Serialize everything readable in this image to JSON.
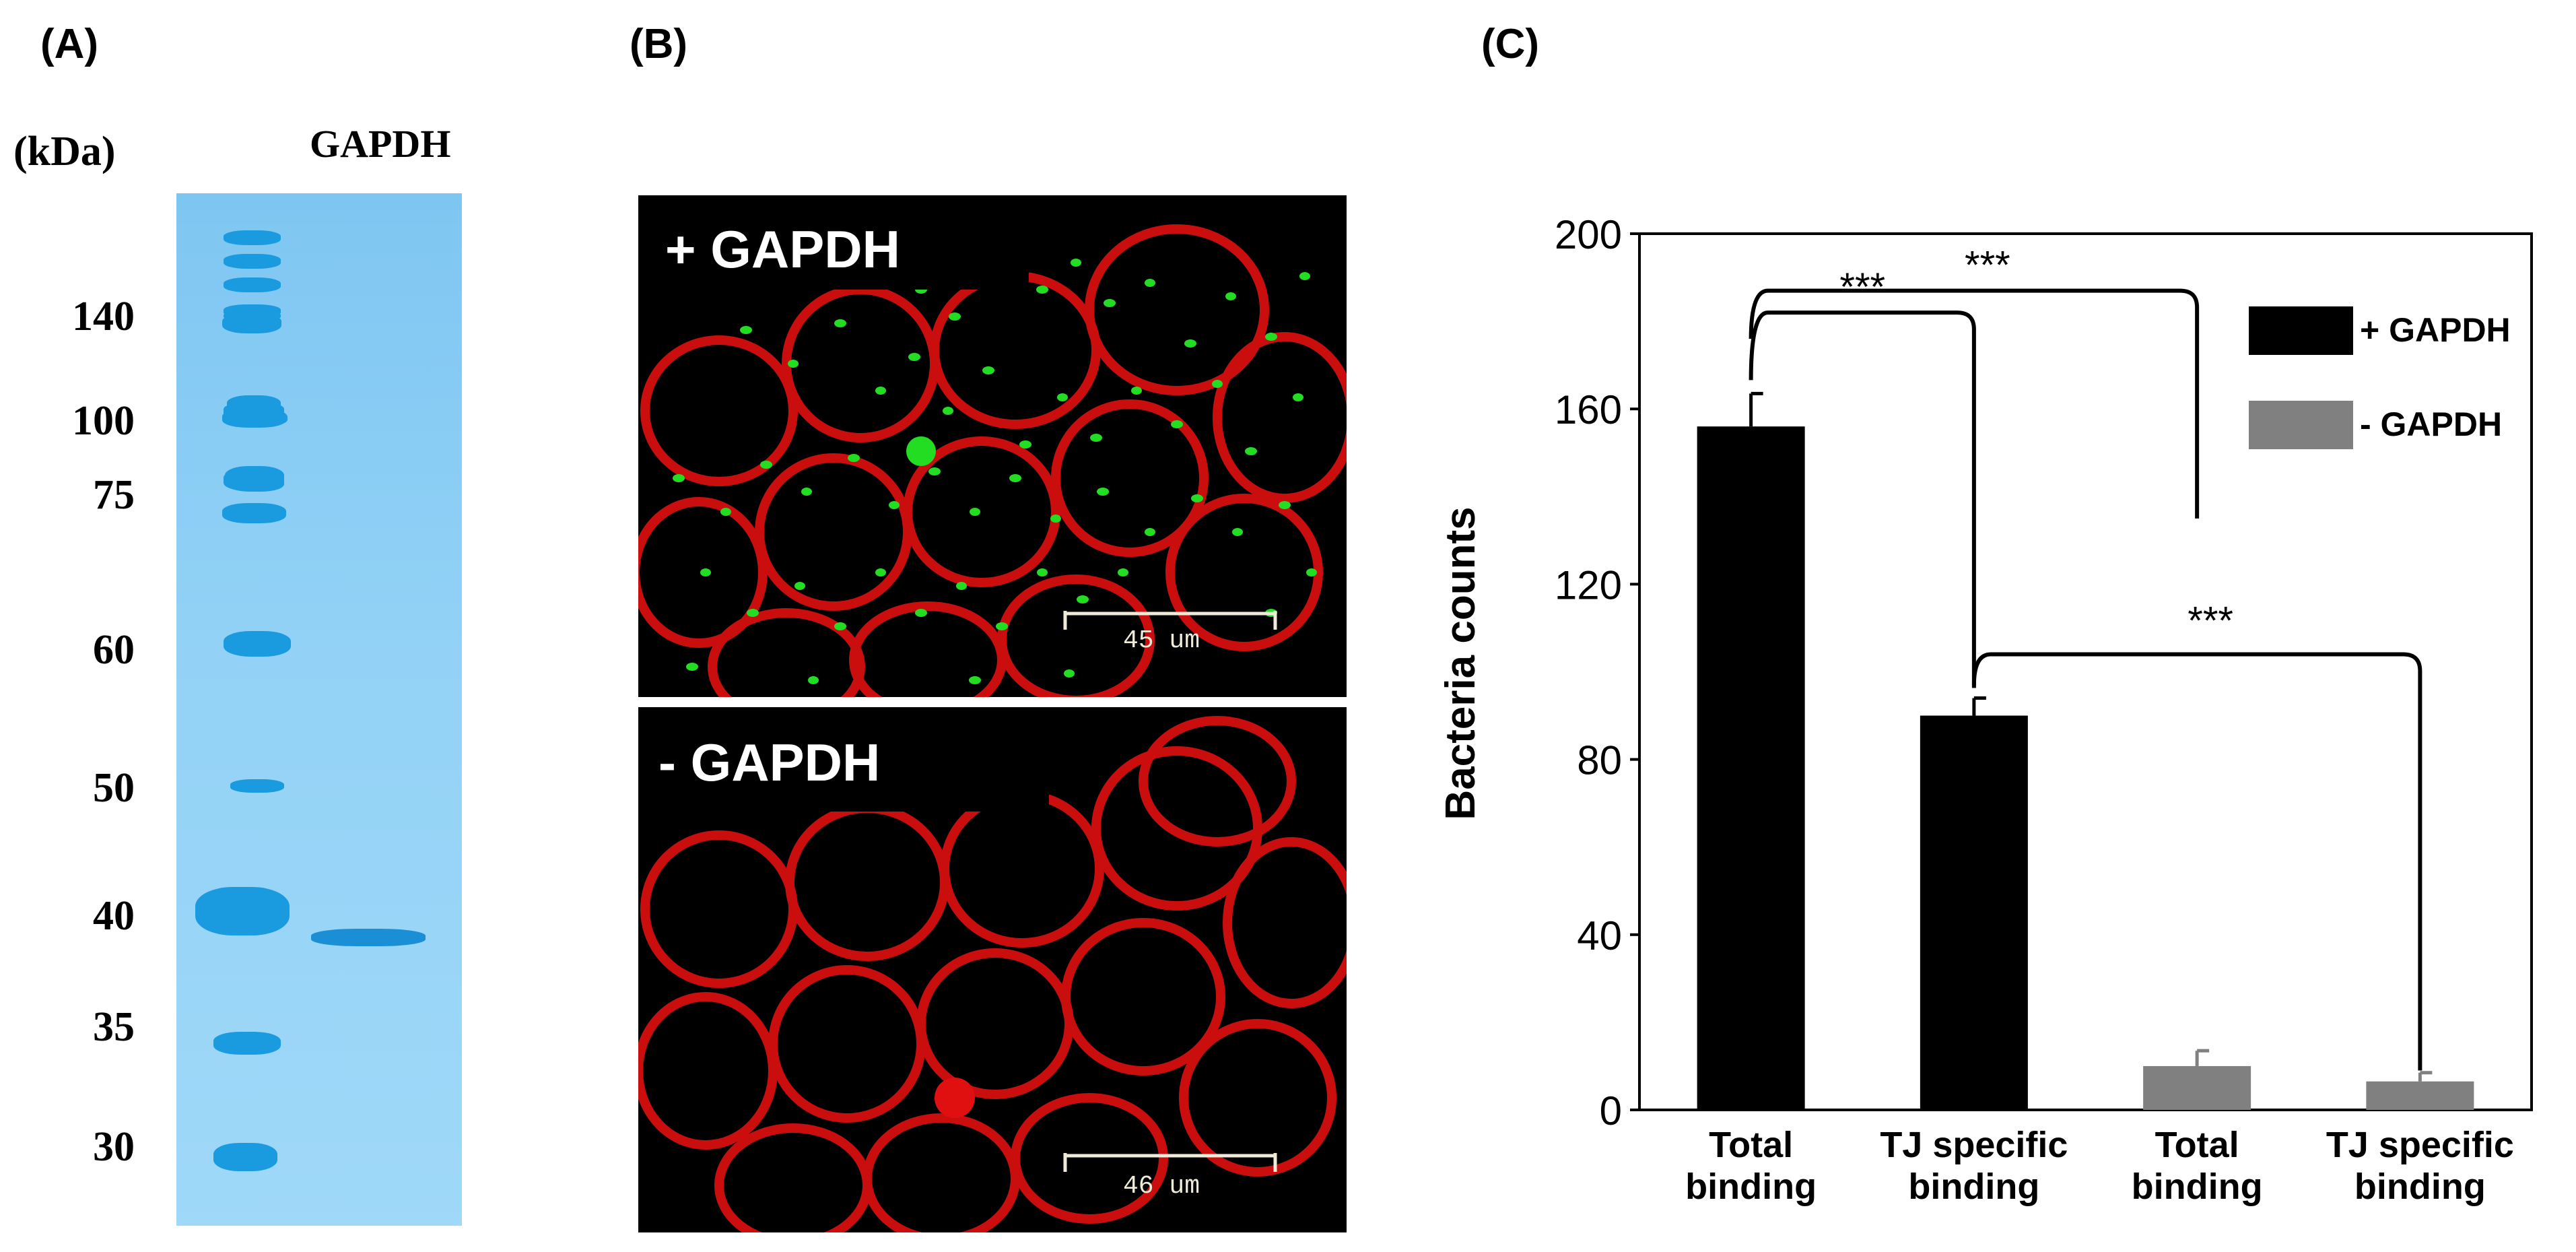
{
  "panels": {
    "a_label": "(A)",
    "b_label": "(B)",
    "c_label": "(C)"
  },
  "gel": {
    "unit_label": "(kDa)",
    "lane_label": "GAPDH",
    "markers": [
      "140",
      "100",
      "75",
      "60",
      "50",
      "40",
      "35",
      "30"
    ]
  },
  "micrographs": {
    "top_label": "+ GAPDH",
    "bottom_label": "-  GAPDH",
    "top_scale": "45 um",
    "bottom_scale": "46 um"
  },
  "colors": {
    "plus": "#000000",
    "minus": "#808080",
    "cell_membrane": "#e01010",
    "bacteria": "#22dd22"
  },
  "chart_data": {
    "type": "bar",
    "ylabel": "Bacteria counts",
    "xlabel": "",
    "ylim": [
      0,
      200
    ],
    "yticks": [
      "0",
      "40",
      "80",
      "120",
      "160",
      "200"
    ],
    "categories": [
      "Total\nbinding",
      "TJ specific\nbinding",
      "Total\nbinding",
      "TJ specific\nbinding"
    ],
    "values": [
      156,
      90,
      10,
      6.5
    ],
    "errors": [
      7.5,
      4,
      3.5,
      2
    ],
    "bar_colors": [
      "#000000",
      "#000000",
      "#808080",
      "#808080"
    ],
    "legend": [
      {
        "name": "+ GAPDH",
        "color": "#000000"
      },
      {
        "name": "- GAPDH",
        "color": "#808080"
      }
    ],
    "legend_position": "top-right",
    "significance": [
      "***",
      "***",
      "***"
    ]
  }
}
